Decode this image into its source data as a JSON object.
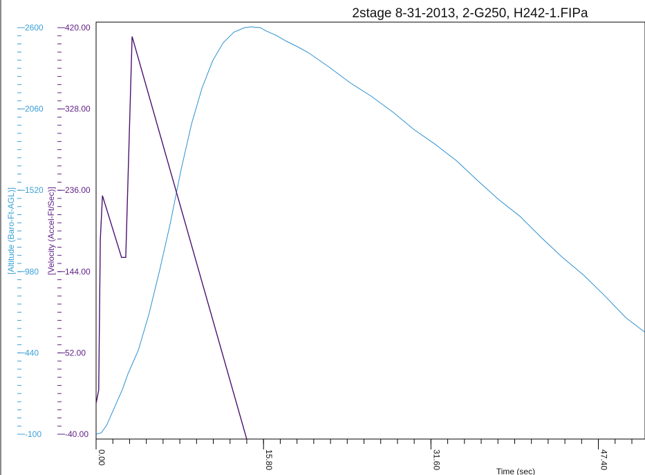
{
  "chart_data": {
    "type": "line",
    "title": "2stage 8-31-2013, 2-G250, H242-1.FIPa",
    "xlabel": "Time (sec)",
    "x_ticks": [
      "0.00",
      "15.80",
      "31.60",
      "47.40"
    ],
    "xlim": [
      0,
      51.8
    ],
    "axes": [
      {
        "label": "[Altitude (Baro-Ft-AGL)]",
        "color": "#3a9fd6",
        "ticks": [
          "2600",
          "2060",
          "1520",
          "980",
          "440",
          "-100"
        ],
        "ylim": [
          -100,
          2600
        ]
      },
      {
        "label": "[Velocity (Accel-Ft/Sec)]",
        "color": "#5e1e83",
        "ticks": [
          "420.00",
          "328.00",
          "236.00",
          "144.00",
          "52.00",
          "-40.00"
        ],
        "ylim": [
          -40,
          420
        ]
      }
    ],
    "series": [
      {
        "axis": 0,
        "color": "#2a8fcf",
        "x": [
          0,
          0.5,
          1,
          2,
          2.5,
          3,
          4,
          5,
          6,
          7,
          8,
          9,
          10,
          11,
          12,
          13,
          14,
          14.6,
          15.5,
          16,
          17,
          18,
          19,
          20,
          22,
          24,
          26,
          28,
          30,
          32,
          34,
          36,
          38,
          40,
          42,
          44,
          46,
          48,
          50,
          51.8
        ],
        "y": [
          -100,
          -90,
          -40,
          120,
          200,
          300,
          460,
          700,
          990,
          1300,
          1650,
          1960,
          2200,
          2380,
          2500,
          2570,
          2600,
          2605,
          2600,
          2580,
          2555,
          2515,
          2475,
          2430,
          2335,
          2240,
          2140,
          2035,
          1930,
          1825,
          1710,
          1590,
          1460,
          1340,
          1210,
          1080,
          950,
          820,
          680,
          570
        ]
      },
      {
        "axis": 1,
        "color": "#4a1070",
        "x": [
          0,
          0.25,
          0.4,
          0.6,
          2.4,
          2.8,
          3.4,
          14.2
        ],
        "y": [
          -5,
          10,
          180,
          230,
          160,
          160,
          410,
          -45
        ]
      }
    ],
    "grid": false
  }
}
